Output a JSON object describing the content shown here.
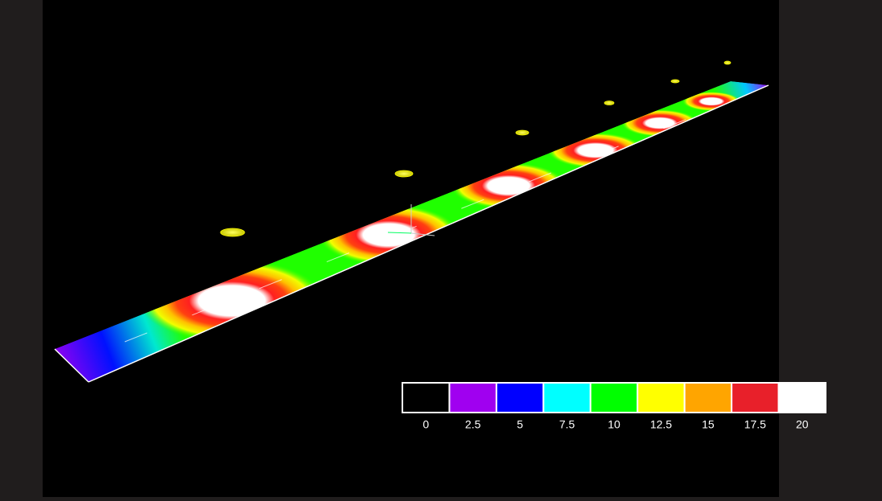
{
  "legend": {
    "colors": [
      "#000000",
      "#a000f0",
      "#0000ff",
      "#00ffff",
      "#00ff00",
      "#ffff00",
      "#ffa500",
      "#e8202a",
      "#ffffff"
    ],
    "labels": [
      "0",
      "2.5",
      "5",
      "7.5",
      "10",
      "12.5",
      "15",
      "17.5",
      "20"
    ]
  }
}
